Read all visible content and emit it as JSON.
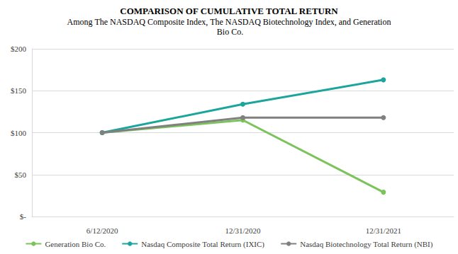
{
  "chart_data": {
    "type": "line",
    "title": "COMPARISON OF CUMULATIVE TOTAL RETURN",
    "subtitle": "Among The NASDAQ Composite Index, The NASDAQ Biotechnology Index, and Generation Bio Co.",
    "categories": [
      "6/12/2020",
      "12/31/2020",
      "12/31/2021"
    ],
    "series": [
      {
        "name": "Generation Bio Co.",
        "color": "#7cc35b",
        "values": [
          100,
          115,
          29
        ]
      },
      {
        "name": "Nasdaq Composite Total Return (IXIC)",
        "color": "#1ba59c",
        "values": [
          100,
          134,
          163
        ]
      },
      {
        "name": "Nasdaq Biotechnology Total Return (NBI)",
        "color": "#808080",
        "values": [
          100,
          118,
          118
        ]
      }
    ],
    "ylim": [
      0,
      200
    ],
    "yticks": [
      {
        "value": 0,
        "label": "$-"
      },
      {
        "value": 50,
        "label": "$50"
      },
      {
        "value": 100,
        "label": "$100"
      },
      {
        "value": 150,
        "label": "$150"
      },
      {
        "value": 200,
        "label": "$200"
      }
    ],
    "grid": true,
    "legend": "bottom",
    "marker": "circle"
  }
}
